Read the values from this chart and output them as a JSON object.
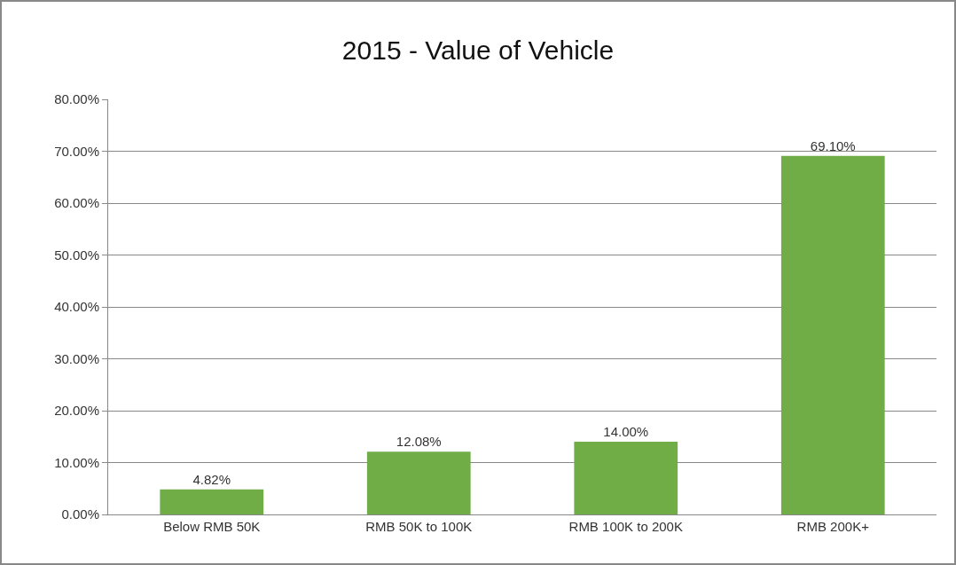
{
  "chart_data": {
    "type": "bar",
    "title": "2015 - Value of Vehicle",
    "categories": [
      "Below RMB 50K",
      "RMB 50K to 100K",
      "RMB 100K to 200K",
      "RMB 200K+"
    ],
    "values": [
      4.82,
      12.08,
      14.0,
      69.1
    ],
    "value_labels": [
      "4.82%",
      "12.08%",
      "14.00%",
      "69.10%"
    ],
    "color": "#70ad47",
    "ylim": [
      0,
      80
    ],
    "yticks": [
      {
        "value": 0,
        "label": "0.00%"
      },
      {
        "value": 10,
        "label": "10.00%"
      },
      {
        "value": 20,
        "label": "20.00%"
      },
      {
        "value": 30,
        "label": "30.00%"
      },
      {
        "value": 40,
        "label": "40.00%"
      },
      {
        "value": 50,
        "label": "50.00%"
      },
      {
        "value": 60,
        "label": "60.00%"
      },
      {
        "value": 70,
        "label": "70.00%"
      },
      {
        "value": 80,
        "label": "80.00%"
      }
    ],
    "grid": "y",
    "legend": false
  }
}
